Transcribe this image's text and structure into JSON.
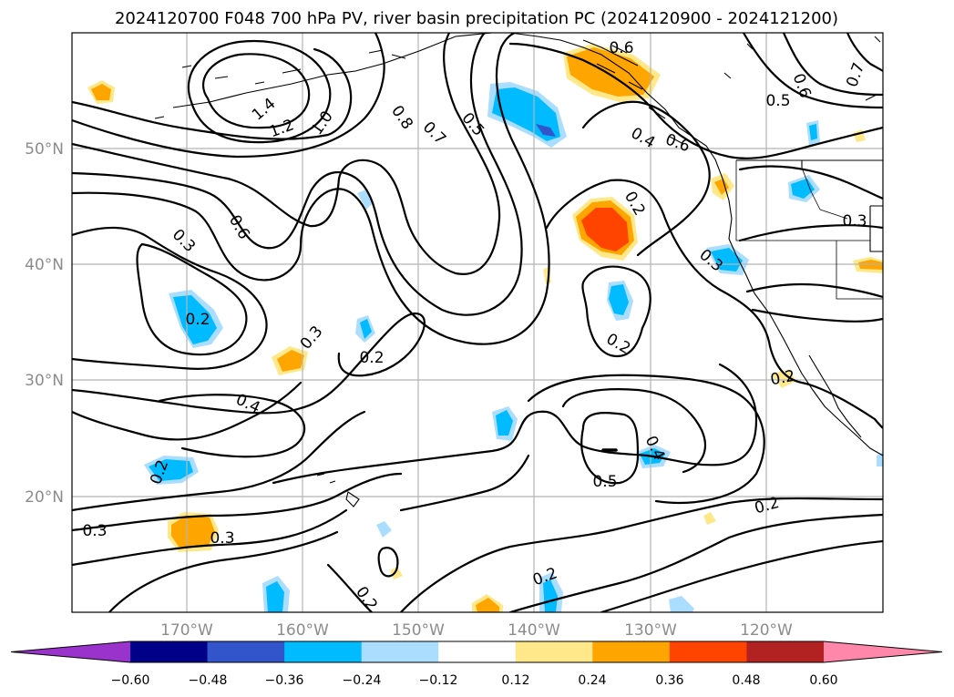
{
  "title": "2024120700 F048 700 hPa PV, river basin precipitation PC (2024120900 - 2024121200)",
  "latitude_labels": [
    "50°N",
    "40°N",
    "30°N",
    "20°N"
  ],
  "longitude_labels": [
    "170°W",
    "160°W",
    "150°W",
    "140°W",
    "130°W",
    "120°W"
  ],
  "colorbar": {
    "ticks": [
      "−0.60",
      "−0.48",
      "−0.36",
      "−0.24",
      "−0.12",
      "0.12",
      "0.24",
      "0.36",
      "0.48",
      "0.60"
    ],
    "colors": [
      "#9933cc",
      "#000088",
      "#3355cc",
      "#00bbff",
      "#aaddff",
      "#ffffff",
      "#ffe88a",
      "#ffa500",
      "#ff4400",
      "#b22222",
      "#ff88aa"
    ]
  },
  "contour_labels": [
    "1.4",
    "1.2",
    "1.0",
    "0.8",
    "0.7",
    "0.5",
    "0.6",
    "0.6",
    "0.4",
    "0.2",
    "0.3",
    "0.3",
    "0.6",
    "0.5",
    "0.6",
    "0.7",
    "0.3",
    "0.2",
    "0.3",
    "0.2",
    "0.2",
    "0.4",
    "0.2",
    "0.3",
    "0.3",
    "0.2",
    "0.2",
    "0.5",
    "0.4",
    "0.2",
    "0.2"
  ]
}
